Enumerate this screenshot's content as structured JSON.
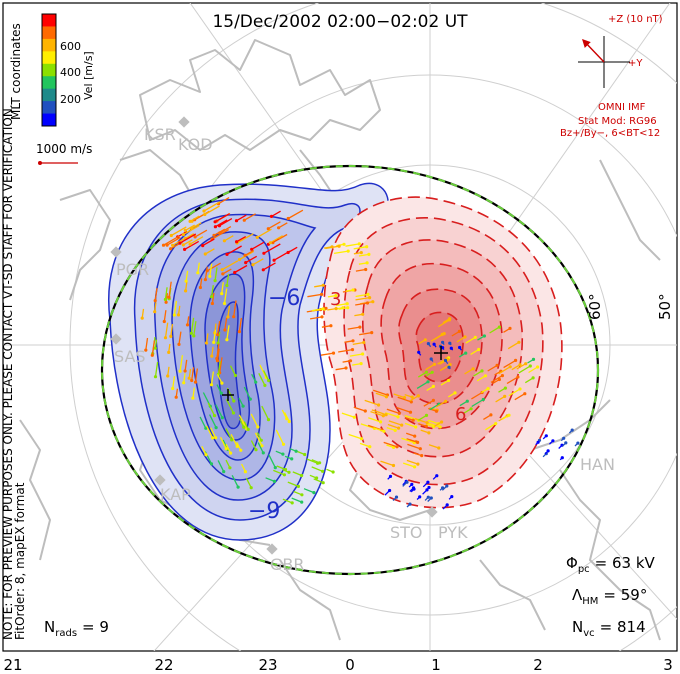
{
  "title": "15/Dec/2002 02:00−02:02 UT",
  "colorbar": {
    "ticks": [
      "600",
      "400",
      "200"
    ],
    "label": "Vel [m/s]",
    "colors": [
      "#ff0000",
      "#ff6a00",
      "#ffb400",
      "#ffee00",
      "#8be000",
      "#22c55e",
      "#1e8a8a",
      "#2050c0",
      "#0000ff"
    ]
  },
  "mlt_label": "MLT coordinates",
  "scale_vector": "1000 m/s",
  "side_note": "NOTE: FOR PREVIEW PURPOSES ONLY. PLEASE CONTACT VT-SD STAFF FOR VERIFICATION.",
  "fit_order": "FitOrder: 8, mapEX format",
  "imf": {
    "z_label": "+Z (10 nT)",
    "y_label": "+Y",
    "source": "OMNI IMF",
    "model": "Stat Mod: RG96",
    "model_cond": "Bz+/By−, 6<BT<12"
  },
  "latitude_labels": [
    "60°",
    "50°"
  ],
  "contour_labels": [
    "−6",
    "−9",
    "3",
    "6"
  ],
  "radars": [
    "KSR",
    "KOD",
    "PGR",
    "SAS",
    "KAP",
    "GBR",
    "STO",
    "PYK",
    "HAN"
  ],
  "stats": {
    "phi_pc": {
      "sym": "Φ",
      "sub": "pc",
      "value": "= 63 kV"
    },
    "lambda_hm": {
      "sym": "Λ",
      "sub": "HM",
      "value": "= 59°"
    },
    "n_vc": {
      "sym": "N",
      "sub": "vc",
      "value": "= 814"
    },
    "n_rads": {
      "sym": "N",
      "sub": "rads",
      "value": "= 9"
    }
  },
  "mlt_axis": [
    "21",
    "22",
    "23",
    "0",
    "1",
    "2",
    "3"
  ],
  "potential_colors": {
    "negative": "#2030c8",
    "positive": "#d81e1e",
    "boundary": "#6ad03a"
  }
}
